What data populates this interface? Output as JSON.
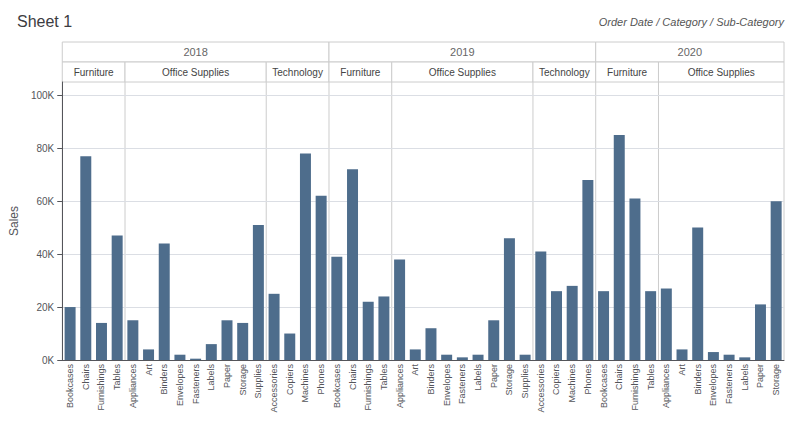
{
  "chart_data": {
    "type": "bar",
    "title": "Sheet 1",
    "xlabel": "Order Date / Category / Sub-Category",
    "ylabel": "Sales",
    "outer_categories": [
      "2018",
      "2018",
      "2018",
      "2018",
      "2018",
      "2018",
      "2018",
      "2018",
      "2018",
      "2018",
      "2018",
      "2018",
      "2018",
      "2018",
      "2018",
      "2018",
      "2018",
      "2019",
      "2019",
      "2019",
      "2019",
      "2019",
      "2019",
      "2019",
      "2019",
      "2019",
      "2019",
      "2019",
      "2019",
      "2019",
      "2019",
      "2019",
      "2019",
      "2019",
      "2020",
      "2020",
      "2020",
      "2020",
      "2020",
      "2020",
      "2020",
      "2020",
      "2020",
      "2020",
      "2020",
      "2020"
    ],
    "middle_categories": [
      "Furniture",
      "Furniture",
      "Furniture",
      "Furniture",
      "Office Supplies",
      "Office Supplies",
      "Office Supplies",
      "Office Supplies",
      "Office Supplies",
      "Office Supplies",
      "Office Supplies",
      "Office Supplies",
      "Office Supplies",
      "Technology",
      "Technology",
      "Technology",
      "Technology",
      "Furniture",
      "Furniture",
      "Furniture",
      "Furniture",
      "Office Supplies",
      "Office Supplies",
      "Office Supplies",
      "Office Supplies",
      "Office Supplies",
      "Office Supplies",
      "Office Supplies",
      "Office Supplies",
      "Office Supplies",
      "Technology",
      "Technology",
      "Technology",
      "Technology",
      "Furniture",
      "Furniture",
      "Furniture",
      "Furniture",
      "Office Supplies",
      "Office Supplies",
      "Office Supplies",
      "Office Supplies",
      "Office Supplies",
      "Office Supplies",
      "Office Supplies",
      "Office Supplies"
    ],
    "categories": [
      "Bookcases",
      "Chairs",
      "Furnishings",
      "Tables",
      "Appliances",
      "Art",
      "Binders",
      "Envelopes",
      "Fasteners",
      "Labels",
      "Paper",
      "Storage",
      "Supplies",
      "Accessories",
      "Copiers",
      "Machines",
      "Phones",
      "Bookcases",
      "Chairs",
      "Furnishings",
      "Tables",
      "Appliances",
      "Art",
      "Binders",
      "Envelopes",
      "Fasteners",
      "Labels",
      "Paper",
      "Storage",
      "Supplies",
      "Accessories",
      "Copiers",
      "Machines",
      "Phones",
      "Bookcases",
      "Chairs",
      "Furnishings",
      "Tables",
      "Appliances",
      "Art",
      "Binders",
      "Envelopes",
      "Fasteners",
      "Labels",
      "Paper",
      "Storage"
    ],
    "values": [
      20000,
      77000,
      14000,
      47000,
      15000,
      4000,
      44000,
      2000,
      500,
      6000,
      15000,
      14000,
      51000,
      25000,
      10000,
      78000,
      62000,
      39000,
      72000,
      22000,
      24000,
      38000,
      4000,
      12000,
      2000,
      1000,
      2000,
      15000,
      46000,
      2000,
      41000,
      26000,
      28000,
      68000,
      26000,
      85000,
      61000,
      26000,
      27000,
      4000,
      50000,
      3000,
      2000,
      1000,
      21000,
      60000
    ],
    "color": "#4e6d8c",
    "ylim": [
      0,
      105000
    ],
    "yticks": [
      {
        "value": 0,
        "label": "0K"
      },
      {
        "value": 20000,
        "label": "20K"
      },
      {
        "value": 40000,
        "label": "40K"
      },
      {
        "value": 60000,
        "label": "60K"
      },
      {
        "value": 80000,
        "label": "80K"
      },
      {
        "value": 100000,
        "label": "100K"
      }
    ],
    "grid": true
  }
}
